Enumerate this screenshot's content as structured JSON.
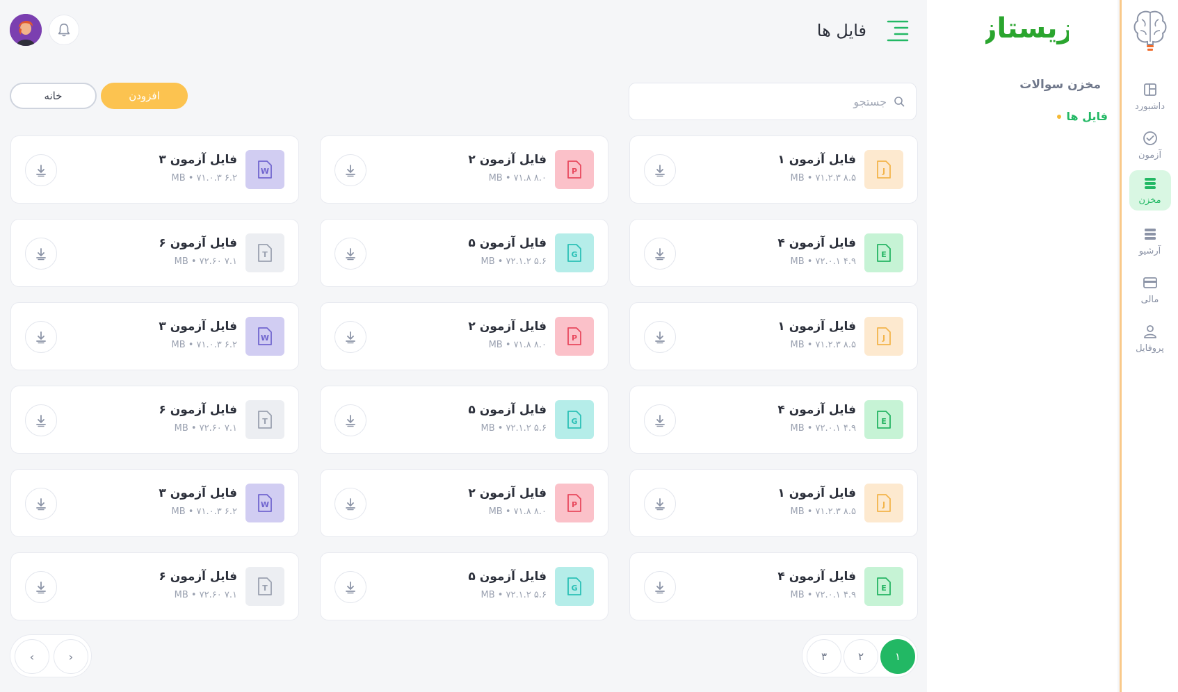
{
  "rail": {
    "items": [
      {
        "label": "داشبورد",
        "icon": "dashboard-icon",
        "active": false
      },
      {
        "label": "آزمون",
        "icon": "check-circle-icon",
        "active": false
      },
      {
        "label": "مخزن",
        "icon": "database-icon",
        "active": true
      },
      {
        "label": "آرشیو",
        "icon": "archive-icon",
        "active": false
      },
      {
        "label": "مالی",
        "icon": "card-icon",
        "active": false
      },
      {
        "label": "پروفایل",
        "icon": "user-icon",
        "active": false
      }
    ]
  },
  "sidebar": {
    "brand": "زیستاز",
    "section_title": "مخزن سوالات",
    "active_link": "فایل ها"
  },
  "header": {
    "title": "فایل ها"
  },
  "search": {
    "placeholder": "جستجو",
    "value": ""
  },
  "actions": {
    "add_label": "افزودن",
    "home_label": "خانه"
  },
  "files": [
    {
      "name": "فایل آزمون ۱",
      "meta": "۸.۵ MB • ۷۱.۲.۳",
      "letter": "J",
      "bg": "#fde9cf",
      "fg": "#f3b44a"
    },
    {
      "name": "فایل آزمون ۲",
      "meta": "۸.۰ MB • ۷۱.۸",
      "letter": "P",
      "bg": "#fbc1c9",
      "fg": "#e8485d"
    },
    {
      "name": "فایل آزمون ۳",
      "meta": "۶.۲ MB • ۷۱.۰.۳",
      "letter": "W",
      "bg": "#d1cdf2",
      "fg": "#7166cf"
    },
    {
      "name": "فایل آزمون ۴",
      "meta": "۴.۹ MB • ۷۲.۰.۱",
      "letter": "E",
      "bg": "#c6f3d5",
      "fg": "#25b463"
    },
    {
      "name": "فایل آزمون ۵",
      "meta": "۵.۶ MB • ۷۲.۱.۲",
      "letter": "G",
      "bg": "#b5ede9",
      "fg": "#2bc0b6"
    },
    {
      "name": "فایل آزمون ۶",
      "meta": "۷.۱ MB • ۷۲.۶۰",
      "letter": "T",
      "bg": "#eceef2",
      "fg": "#9aa1b0"
    },
    {
      "name": "فایل آزمون ۱",
      "meta": "۸.۵ MB • ۷۱.۲.۳",
      "letter": "J",
      "bg": "#fde9cf",
      "fg": "#f3b44a"
    },
    {
      "name": "فایل آزمون ۲",
      "meta": "۸.۰ MB • ۷۱.۸",
      "letter": "P",
      "bg": "#fbc1c9",
      "fg": "#e8485d"
    },
    {
      "name": "فایل آزمون ۳",
      "meta": "۶.۲ MB • ۷۱.۰.۳",
      "letter": "W",
      "bg": "#d1cdf2",
      "fg": "#7166cf"
    },
    {
      "name": "فایل آزمون ۴",
      "meta": "۴.۹ MB • ۷۲.۰.۱",
      "letter": "E",
      "bg": "#c6f3d5",
      "fg": "#25b463"
    },
    {
      "name": "فایل آزمون ۵",
      "meta": "۵.۶ MB • ۷۲.۱.۲",
      "letter": "G",
      "bg": "#b5ede9",
      "fg": "#2bc0b6"
    },
    {
      "name": "فایل آزمون ۶",
      "meta": "۷.۱ MB • ۷۲.۶۰",
      "letter": "T",
      "bg": "#eceef2",
      "fg": "#9aa1b0"
    },
    {
      "name": "فایل آزمون ۱",
      "meta": "۸.۵ MB • ۷۱.۲.۳",
      "letter": "J",
      "bg": "#fde9cf",
      "fg": "#f3b44a"
    },
    {
      "name": "فایل آزمون ۲",
      "meta": "۸.۰ MB • ۷۱.۸",
      "letter": "P",
      "bg": "#fbc1c9",
      "fg": "#e8485d"
    },
    {
      "name": "فایل آزمون ۳",
      "meta": "۶.۲ MB • ۷۱.۰.۳",
      "letter": "W",
      "bg": "#d1cdf2",
      "fg": "#7166cf"
    },
    {
      "name": "فایل آزمون ۴",
      "meta": "۴.۹ MB • ۷۲.۰.۱",
      "letter": "E",
      "bg": "#c6f3d5",
      "fg": "#25b463"
    },
    {
      "name": "فایل آزمون ۵",
      "meta": "۵.۶ MB • ۷۲.۱.۲",
      "letter": "G",
      "bg": "#b5ede9",
      "fg": "#2bc0b6"
    },
    {
      "name": "فایل آزمون ۶",
      "meta": "۷.۱ MB • ۷۲.۶۰",
      "letter": "T",
      "bg": "#eceef2",
      "fg": "#9aa1b0"
    }
  ],
  "pagination": {
    "pages": [
      "۱",
      "۲",
      "۳"
    ],
    "current": "۱",
    "prev": "‹",
    "next": "›"
  },
  "colors": {
    "accent_green": "#22b864",
    "accent_yellow": "#fcc350",
    "rail_border": "#f9c98a"
  }
}
